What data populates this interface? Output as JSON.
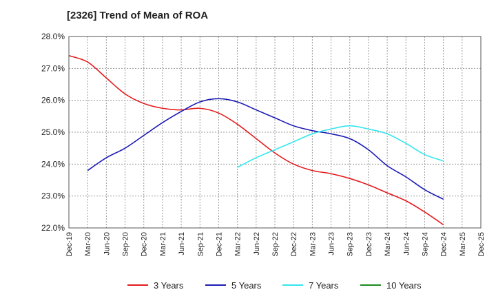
{
  "chart_data": {
    "type": "line",
    "title": "[2326]  Trend of Mean of ROA",
    "xlabel": "",
    "ylabel": "",
    "ylim": [
      22.0,
      28.0
    ],
    "y_ticks": [
      "28.0%",
      "27.0%",
      "26.0%",
      "25.0%",
      "24.0%",
      "23.0%",
      "22.0%"
    ],
    "y_tick_values": [
      28,
      27,
      26,
      25,
      24,
      23,
      22
    ],
    "x_ticks": [
      "Dec-19",
      "Mar-20",
      "Jun-20",
      "Sep-20",
      "Dec-20",
      "Mar-21",
      "Jun-21",
      "Sep-21",
      "Dec-21",
      "Mar-22",
      "Jun-22",
      "Sep-22",
      "Dec-22",
      "Mar-23",
      "Jun-23",
      "Sep-23",
      "Dec-23",
      "Mar-24",
      "Jun-24",
      "Sep-24",
      "Dec-24",
      "Mar-25",
      "Dec-25"
    ],
    "grid": true,
    "legend_position": "bottom",
    "series": [
      {
        "name": "3 Years",
        "color": "#e41a1c",
        "x": [
          "Dec-19",
          "Mar-20",
          "Jun-20",
          "Sep-20",
          "Dec-20",
          "Mar-21",
          "Jun-21",
          "Sep-21",
          "Dec-21",
          "Mar-22",
          "Jun-22",
          "Sep-22",
          "Dec-22",
          "Mar-23",
          "Jun-23",
          "Sep-23",
          "Dec-23",
          "Mar-24",
          "Jun-24",
          "Sep-24",
          "Dec-24"
        ],
        "values": [
          27.4,
          27.2,
          26.7,
          26.2,
          25.9,
          25.75,
          25.7,
          25.75,
          25.6,
          25.25,
          24.8,
          24.35,
          24.0,
          23.8,
          23.7,
          23.55,
          23.35,
          23.1,
          22.85,
          22.5,
          22.1
        ]
      },
      {
        "name": "5 Years",
        "color": "#1a1ab4",
        "x": [
          "Mar-20",
          "Jun-20",
          "Sep-20",
          "Dec-20",
          "Mar-21",
          "Jun-21",
          "Sep-21",
          "Dec-21",
          "Mar-22",
          "Jun-22",
          "Sep-22",
          "Dec-22",
          "Mar-23",
          "Jun-23",
          "Sep-23",
          "Dec-23",
          "Mar-24",
          "Jun-24",
          "Sep-24",
          "Dec-24"
        ],
        "values": [
          23.8,
          24.2,
          24.5,
          24.9,
          25.3,
          25.65,
          25.95,
          26.05,
          25.95,
          25.7,
          25.45,
          25.2,
          25.05,
          24.95,
          24.8,
          24.45,
          23.95,
          23.6,
          23.2,
          22.9
        ]
      },
      {
        "name": "7 Years",
        "color": "#33e6ee",
        "x": [
          "Mar-22",
          "Jun-22",
          "Sep-22",
          "Dec-22",
          "Mar-23",
          "Jun-23",
          "Sep-23",
          "Dec-23",
          "Mar-24",
          "Jun-24",
          "Sep-24",
          "Dec-24"
        ],
        "values": [
          23.9,
          24.2,
          24.45,
          24.7,
          24.95,
          25.1,
          25.2,
          25.1,
          24.95,
          24.65,
          24.3,
          24.1
        ]
      },
      {
        "name": "10 Years",
        "color": "#1a8a1a",
        "x": [],
        "values": []
      }
    ]
  }
}
